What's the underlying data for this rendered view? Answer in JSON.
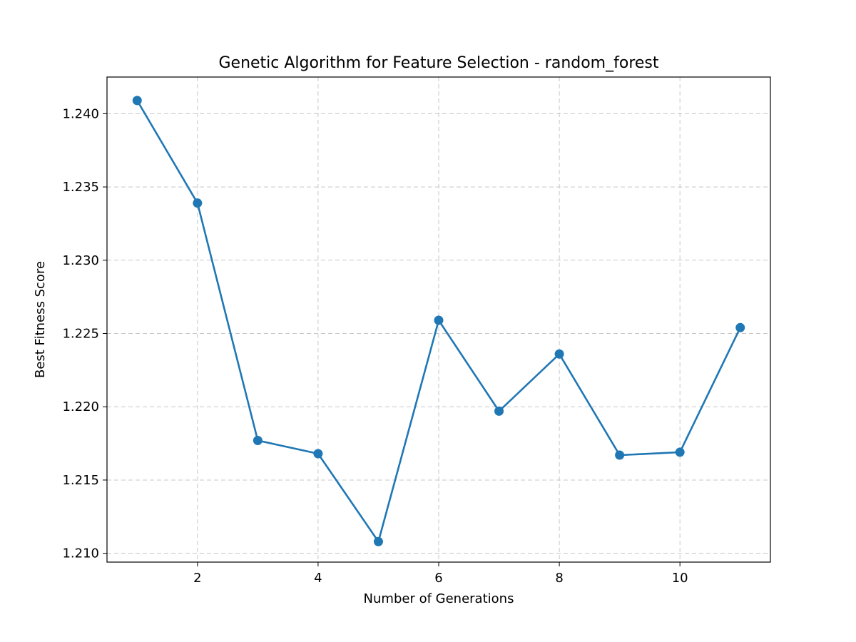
{
  "chart_data": {
    "type": "line",
    "title": "Genetic Algorithm for Feature Selection - random_forest",
    "xlabel": "Number of Generations",
    "ylabel": "Best Fitness Score",
    "xlim": [
      0.5,
      11.5
    ],
    "ylim": [
      1.2094,
      1.2425
    ],
    "xticks": [
      2,
      4,
      6,
      8,
      10
    ],
    "xtick_labels": [
      "2",
      "4",
      "6",
      "8",
      "10"
    ],
    "yticks": [
      1.21,
      1.215,
      1.22,
      1.225,
      1.23,
      1.235,
      1.24
    ],
    "ytick_labels": [
      "1.210",
      "1.215",
      "1.220",
      "1.225",
      "1.230",
      "1.235",
      "1.240"
    ],
    "grid": true,
    "series": [
      {
        "color": "#1f77b4",
        "marker": "circle",
        "x": [
          1,
          2,
          3,
          4,
          5,
          6,
          7,
          8,
          9,
          10,
          11
        ],
        "y": [
          1.2409,
          1.2339,
          1.2177,
          1.2168,
          1.2108,
          1.2259,
          1.2197,
          1.2236,
          1.2167,
          1.2169,
          1.2254
        ]
      }
    ]
  }
}
